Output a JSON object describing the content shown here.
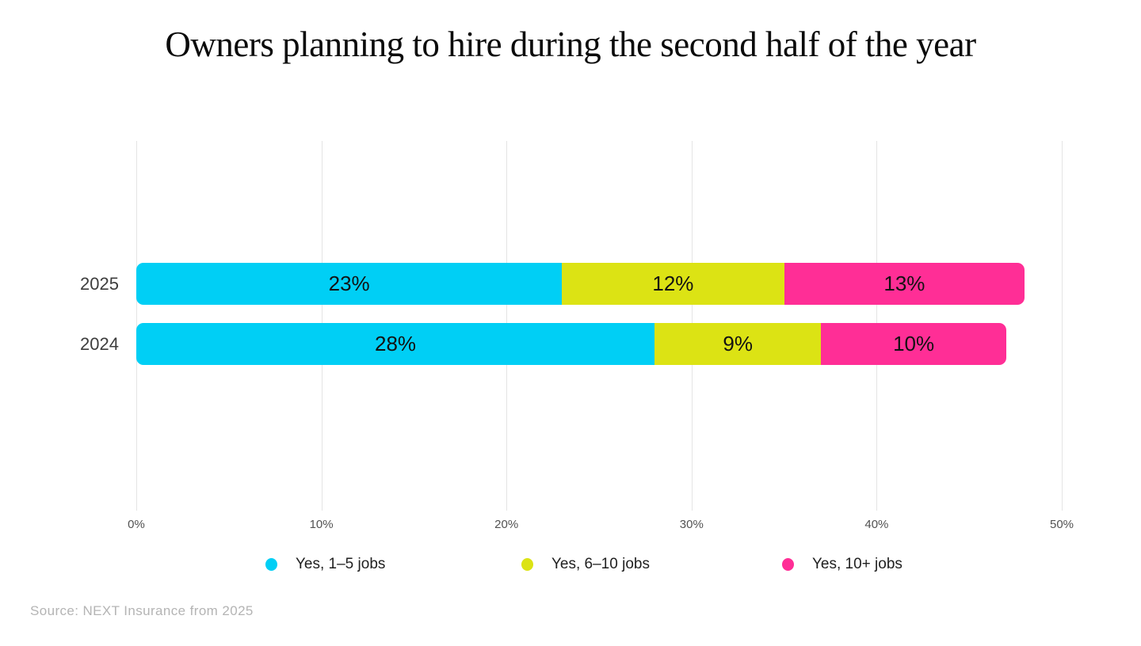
{
  "title": "Owners planning to hire during the second half of the year",
  "source": "Source: NEXT Insurance from 2025",
  "chart_data": {
    "type": "bar",
    "orientation": "horizontal",
    "stacked": true,
    "title": "Owners planning to hire during the second half of the year",
    "categories": [
      "2025",
      "2024"
    ],
    "series": [
      {
        "name": "Yes, 1–5 jobs",
        "color": "#00CFF5",
        "values": [
          23,
          28
        ]
      },
      {
        "name": "Yes, 6–10 jobs",
        "color": "#DCE314",
        "values": [
          12,
          9
        ]
      },
      {
        "name": "Yes, 10+ jobs",
        "color": "#FF2E96",
        "values": [
          13,
          10
        ]
      }
    ],
    "value_suffix": "%",
    "xlim": [
      0,
      50
    ],
    "x_ticks": [
      "0%",
      "10%",
      "20%",
      "30%",
      "40%",
      "50%"
    ],
    "grid": true,
    "legend_position": "bottom",
    "source_note": "Source: NEXT Insurance from 2025"
  }
}
